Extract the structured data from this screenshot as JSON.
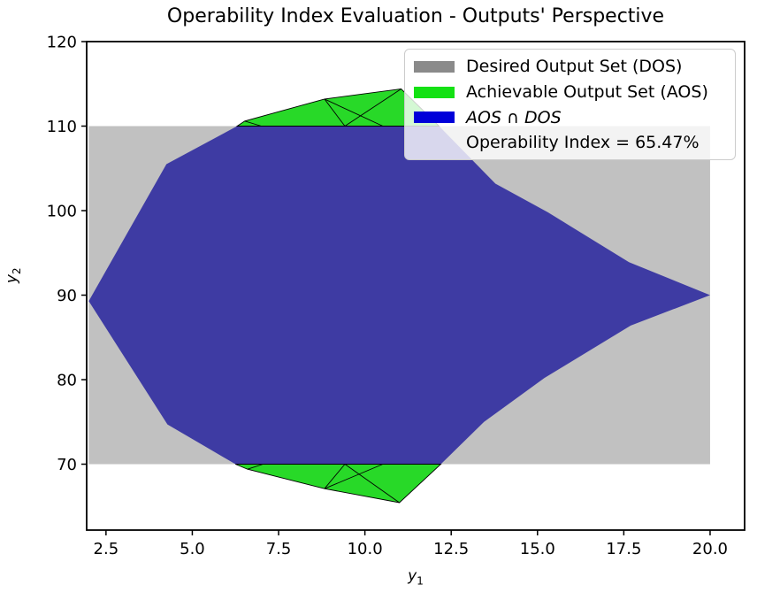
{
  "chart_data": {
    "type": "area",
    "title": "Operability Index Evaluation - Outputs' Perspective",
    "xlabel": {
      "base": "y",
      "sub": "1"
    },
    "ylabel": {
      "base": "y",
      "sub": "2"
    },
    "xlim": [
      1.94,
      21.0
    ],
    "ylim": [
      62.2,
      120.0
    ],
    "grid": false,
    "legend_position": "upper right",
    "operability_index_pct": 65.47,
    "x_ticks": [
      {
        "label": "2.5",
        "value": 2.5
      },
      {
        "label": "5.0",
        "value": 5.0
      },
      {
        "label": "7.5",
        "value": 7.5
      },
      {
        "label": "10.0",
        "value": 10.0
      },
      {
        "label": "12.5",
        "value": 12.5
      },
      {
        "label": "15.0",
        "value": 15.0
      },
      {
        "label": "17.5",
        "value": 17.5
      },
      {
        "label": "20.0",
        "value": 20.0
      }
    ],
    "y_ticks": [
      {
        "label": "70",
        "value": 70
      },
      {
        "label": "80",
        "value": 80
      },
      {
        "label": "90",
        "value": 90
      },
      {
        "label": "100",
        "value": 100
      },
      {
        "label": "110",
        "value": 110
      },
      {
        "label": "120",
        "value": 120
      }
    ],
    "regions": [
      {
        "name": "Desired Output Set (DOS)",
        "data_name": "dos-region",
        "kind": "rect",
        "color": "#c1c1c1",
        "x": [
          2.0,
          20.0
        ],
        "y": [
          70.0,
          110.0
        ]
      },
      {
        "name": "AOS ∩ DOS",
        "data_name": "intersection-region",
        "kind": "polygon",
        "color": "#3e3ba3",
        "points": [
          [
            2.0,
            89.3
          ],
          [
            4.25,
            105.5
          ],
          [
            6.3,
            110
          ],
          [
            12.15,
            110
          ],
          [
            13.78,
            103.2
          ],
          [
            15.3,
            99.8
          ],
          [
            17.65,
            93.9
          ],
          [
            20.0,
            90.0
          ],
          [
            17.7,
            86.4
          ],
          [
            15.2,
            80.2
          ],
          [
            13.45,
            75.0
          ],
          [
            12.2,
            70
          ],
          [
            6.25,
            70
          ],
          [
            4.28,
            74.7
          ]
        ]
      },
      {
        "name": "Achievable Output Set (AOS) above DOS",
        "data_name": "aos-above-region",
        "kind": "polygon",
        "color": "#28d928",
        "edge": "#000000",
        "points": [
          [
            6.3,
            110
          ],
          [
            6.52,
            110.6
          ],
          [
            8.83,
            113.2
          ],
          [
            11.05,
            114.4
          ],
          [
            12.15,
            110
          ]
        ]
      },
      {
        "name": "Achievable Output Set (AOS) below DOS",
        "data_name": "aos-below-region",
        "kind": "polygon",
        "color": "#28d928",
        "edge": "#000000",
        "points": [
          [
            6.25,
            70
          ],
          [
            6.6,
            69.4
          ],
          [
            8.83,
            67.1
          ],
          [
            11.0,
            65.45
          ],
          [
            12.2,
            70
          ]
        ]
      }
    ],
    "segments": [
      [
        [
          8.83,
          113.2
        ],
        [
          9.42,
          110
        ]
      ],
      [
        [
          8.83,
          113.2
        ],
        [
          10.52,
          110
        ]
      ],
      [
        [
          9.42,
          110
        ],
        [
          11.05,
          114.4
        ]
      ],
      [
        [
          6.52,
          110.6
        ],
        [
          7.0,
          110
        ]
      ],
      [
        [
          8.83,
          67.1
        ],
        [
          9.42,
          70
        ]
      ],
      [
        [
          8.83,
          67.1
        ],
        [
          10.52,
          70
        ]
      ],
      [
        [
          9.42,
          70
        ],
        [
          11.0,
          65.45
        ]
      ],
      [
        [
          6.6,
          69.4
        ],
        [
          7.05,
          70
        ]
      ]
    ]
  },
  "legend": {
    "items": [
      {
        "label": "Desired Output Set (DOS)",
        "swatch": "#8a8a8a",
        "italic": false
      },
      {
        "label": "Achievable Output Set (AOS)",
        "swatch": "#14e114",
        "italic": false
      },
      {
        "label": "AOS ∩ DOS",
        "swatch": "#0000d9",
        "italic": true
      },
      {
        "label": "Operability Index = 65.47%",
        "swatch": null,
        "italic": false
      }
    ]
  }
}
